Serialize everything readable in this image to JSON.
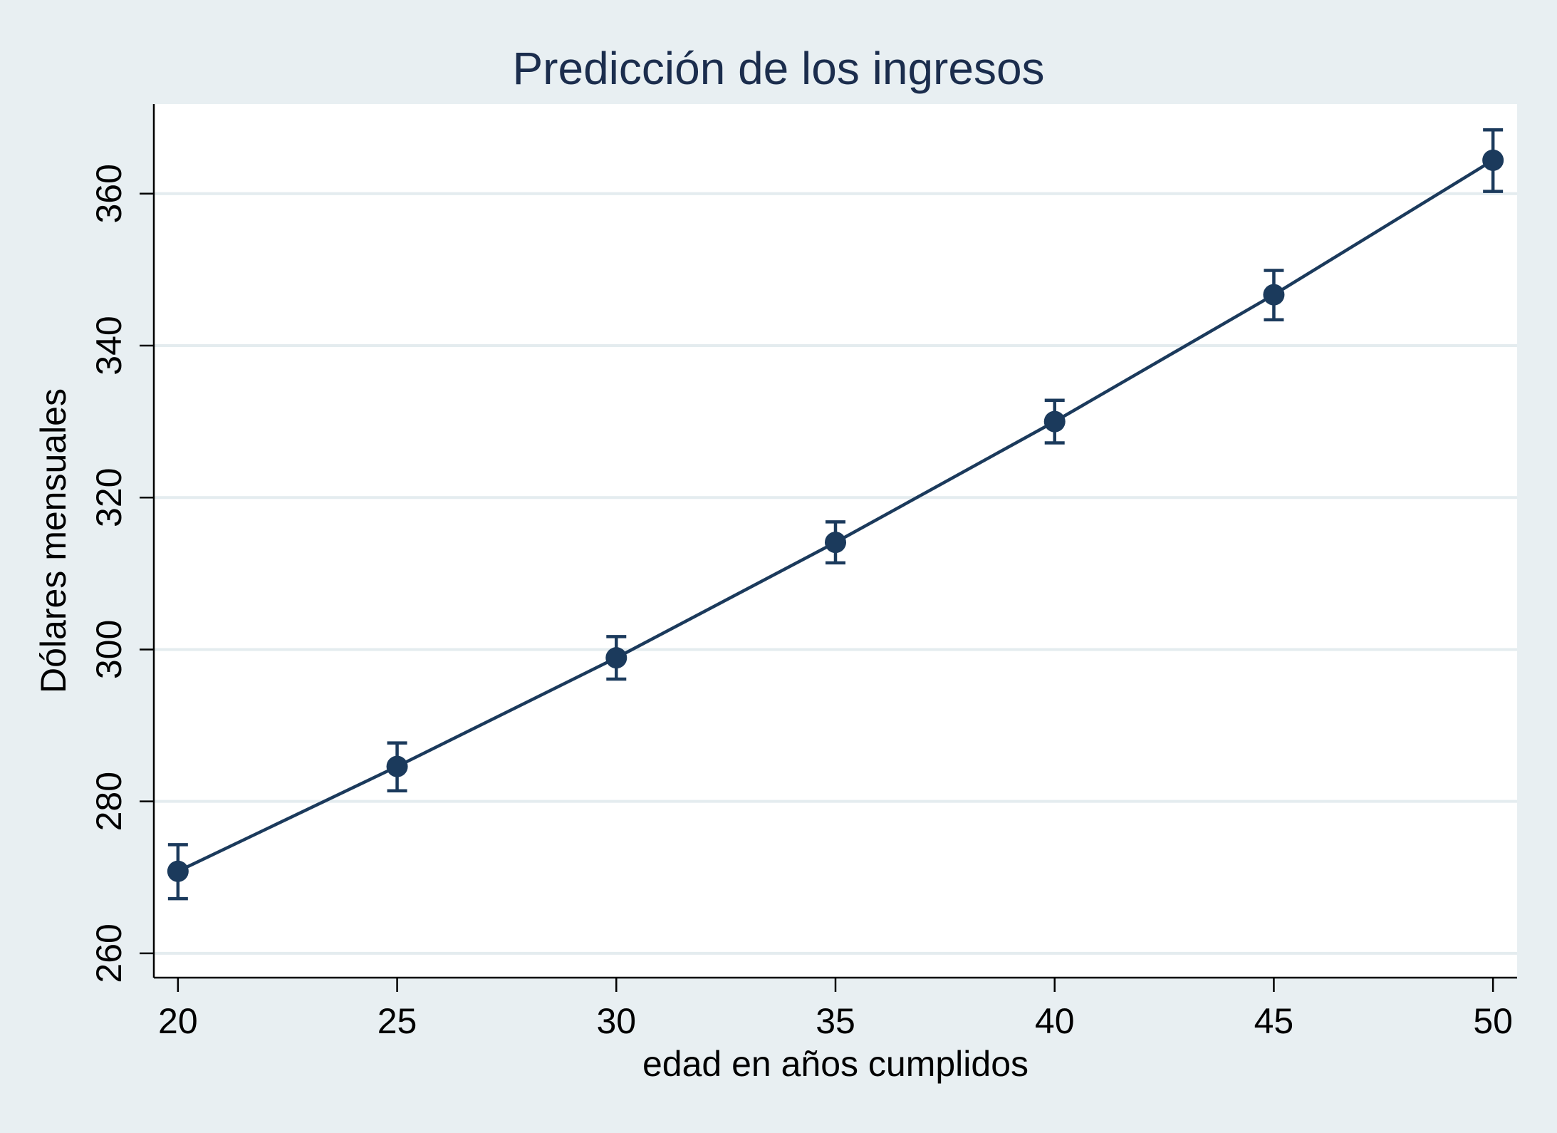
{
  "chart_data": {
    "type": "line",
    "title": "Predicción de los ingresos",
    "xlabel": "edad en años cumplidos",
    "ylabel": "Dólares mensuales",
    "x": [
      20,
      25,
      30,
      35,
      40,
      45,
      50
    ],
    "series": [
      {
        "values": [
          270.8,
          284.6,
          298.9,
          314.1,
          330.0,
          346.7,
          364.4
        ],
        "ci_lower": [
          267.2,
          281.4,
          296.1,
          311.4,
          327.2,
          343.4,
          360.3
        ],
        "ci_upper": [
          274.3,
          287.7,
          301.7,
          316.8,
          332.8,
          349.9,
          368.4
        ]
      }
    ],
    "xlim": [
      19.45,
      50.55
    ],
    "ylim": [
      256.8,
      371.8
    ],
    "xticks": [
      20,
      25,
      30,
      35,
      40,
      45,
      50
    ],
    "yticks": [
      260,
      280,
      300,
      320,
      340,
      360
    ],
    "grid": "horizontal",
    "colors": {
      "series": "#1b3a5c",
      "figure_background": "#e8eff2",
      "plot_background": "#ffffff",
      "gridline": "#e4ecef",
      "title": "#1b2d4d"
    }
  }
}
